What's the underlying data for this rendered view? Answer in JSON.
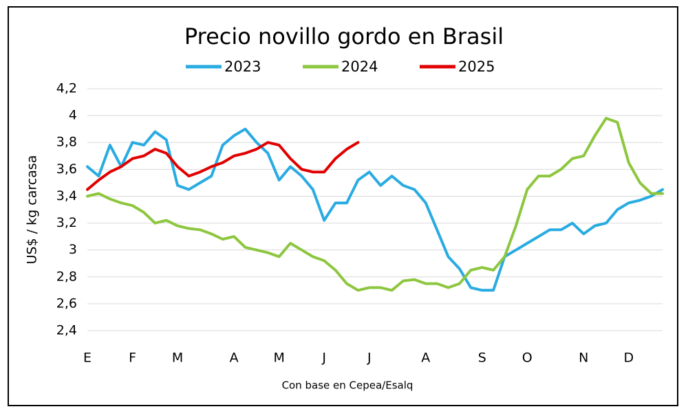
{
  "chart_data": {
    "type": "line",
    "title": "Precio novillo gordo en Brasil",
    "y_label": "US$ / kg carcasa",
    "x_label": "Con base en Cepea/Esalq",
    "categories": [
      "E",
      null,
      null,
      null,
      "F",
      null,
      null,
      null,
      "M",
      null,
      null,
      null,
      null,
      "A",
      null,
      null,
      null,
      "M",
      null,
      null,
      null,
      "J",
      null,
      null,
      null,
      "J",
      null,
      null,
      null,
      null,
      "A",
      null,
      null,
      null,
      null,
      "S",
      null,
      null,
      null,
      "O",
      null,
      null,
      null,
      null,
      "N",
      null,
      null,
      null,
      "D",
      null,
      null,
      null
    ],
    "series": [
      {
        "name": "2023",
        "color": "#29abe2",
        "values": [
          3.62,
          3.55,
          3.78,
          3.62,
          3.8,
          3.78,
          3.88,
          3.82,
          3.48,
          3.45,
          3.5,
          3.55,
          3.78,
          3.85,
          3.9,
          3.8,
          3.72,
          3.52,
          3.62,
          3.55,
          3.45,
          3.22,
          3.35,
          3.35,
          3.52,
          3.58,
          3.48,
          3.55,
          3.48,
          3.45,
          3.35,
          3.15,
          2.95,
          2.86,
          2.72,
          2.7,
          2.7,
          2.95,
          3.0,
          3.05,
          3.1,
          3.15,
          3.15,
          3.2,
          3.12,
          3.18,
          3.2,
          3.3,
          3.35,
          3.37,
          3.4,
          3.45
        ]
      },
      {
        "name": "2024",
        "color": "#8dc63f",
        "values": [
          3.4,
          3.42,
          3.38,
          3.35,
          3.33,
          3.28,
          3.2,
          3.22,
          3.18,
          3.16,
          3.15,
          3.12,
          3.08,
          3.1,
          3.02,
          3.0,
          2.98,
          2.95,
          3.05,
          3.0,
          2.95,
          2.92,
          2.85,
          2.75,
          2.7,
          2.72,
          2.72,
          2.7,
          2.77,
          2.78,
          2.75,
          2.75,
          2.72,
          2.75,
          2.85,
          2.87,
          2.85,
          2.95,
          3.18,
          3.45,
          3.55,
          3.55,
          3.6,
          3.68,
          3.7,
          3.85,
          3.98,
          3.95,
          3.65,
          3.5,
          3.42,
          3.42
        ]
      },
      {
        "name": "2025",
        "color": "#e00000",
        "values": [
          3.45,
          3.52,
          3.58,
          3.62,
          3.68,
          3.7,
          3.75,
          3.72,
          3.62,
          3.55,
          3.58,
          3.62,
          3.65,
          3.7,
          3.72,
          3.75,
          3.8,
          3.78,
          3.68,
          3.6,
          3.58,
          3.58,
          3.68,
          3.75,
          3.8,
          null,
          null,
          null,
          null,
          null,
          null,
          null,
          null,
          null,
          null,
          null,
          null,
          null,
          null,
          null,
          null,
          null,
          null,
          null,
          null,
          null,
          null,
          null,
          null,
          null,
          null,
          null
        ]
      }
    ],
    "ylim": [
      2.4,
      4.2
    ],
    "yticks": [
      {
        "value": 2.4,
        "label": "2,4"
      },
      {
        "value": 2.6,
        "label": "2,6"
      },
      {
        "value": 2.8,
        "label": "2,8"
      },
      3,
      {
        "value": 3.2,
        "label": "3,2"
      },
      {
        "value": 3.4,
        "label": "3,4"
      },
      {
        "value": 3.6,
        "label": "3,6"
      },
      {
        "value": 3.8,
        "label": "3,8"
      },
      4,
      {
        "value": 4.2,
        "label": "4,2"
      }
    ],
    "grid": true,
    "legend": "top"
  }
}
